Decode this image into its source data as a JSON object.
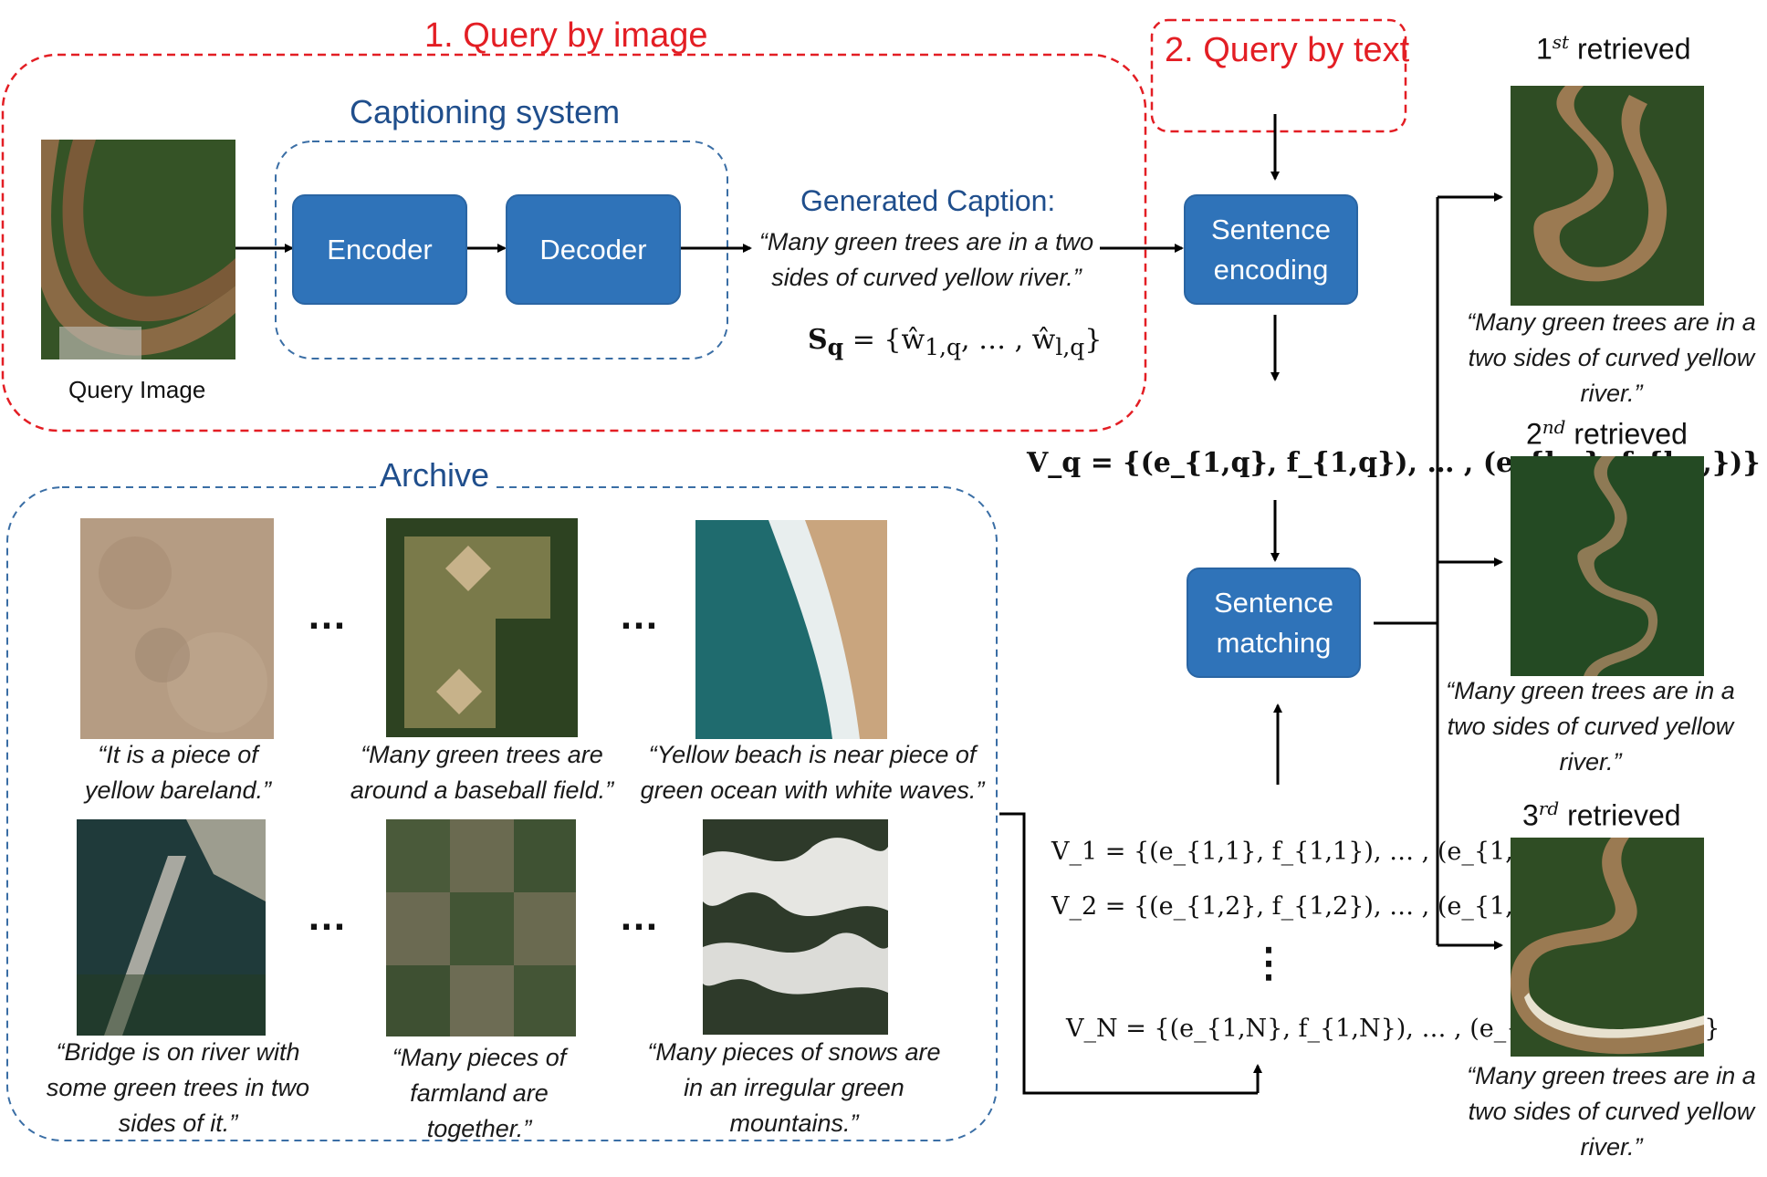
{
  "query_by_image": {
    "title": "1. Query by image"
  },
  "query_by_text": {
    "title": "2. Query by text"
  },
  "captioning_system": {
    "title": "Captioning system",
    "encoder": "Encoder",
    "decoder": "Decoder"
  },
  "query_image_label": "Query Image",
  "generated_caption": {
    "heading": "Generated Caption:",
    "line1": "“Many green trees are in a two",
    "line2": "sides of curved yellow river.”",
    "formula_lhs": "S",
    "formula_sub": "q",
    "formula_rhs": " = {ŵ",
    "formula_sub1": "1,q",
    "formula_mid": ", … , ŵ",
    "formula_sub2": "l,q",
    "formula_end": "}"
  },
  "sentence_encoding": {
    "line1": "Sentence",
    "line2": "encoding"
  },
  "sentence_matching": {
    "line1": "Sentence",
    "line2": "matching"
  },
  "vq_formula": "V_q = {(e_{1,q}, f_{1,q}), … , (e_{l,q}, f_{l,q,})}",
  "archive": {
    "title": "Archive",
    "items": [
      {
        "line1": "“It is a piece of",
        "line2": "yellow bareland.”",
        "line3": ""
      },
      {
        "line1": "“Many green trees are",
        "line2": "around a baseball field.”",
        "line3": ""
      },
      {
        "line1": "“Yellow beach is near piece of",
        "line2": "green ocean with white waves.”",
        "line3": ""
      },
      {
        "line1": "“Bridge is on river with",
        "line2": "some green trees in two",
        "line3": "sides of it.”"
      },
      {
        "line1": "“Many pieces of",
        "line2": "farmland are",
        "line3": "together.”"
      },
      {
        "line1": "“Many pieces of snows are",
        "line2": "in an irregular green",
        "line3": "mountains.”"
      }
    ],
    "ellipsis": "…"
  },
  "archive_vectors": {
    "v1": "V_1 = {(e_{1,1}, f_{1,1}), … , (e_{1,1}, f_{l,1,})}",
    "v2": "V_2 = {(e_{1,2}, f_{1,2}), … , (e_{1,2}, f_{l,2,})}",
    "vdots": "⋮",
    "vn": "V_N = {(e_{1,N}, f_{1,N}), … , (e_{1,N}, f_{l,N,})}"
  },
  "retrieved": [
    {
      "ordinal": "1",
      "suffix": "st",
      "label": "retrieved",
      "line1": "“Many green trees are in a",
      "line2": "two sides of curved yellow",
      "line3": "river.”"
    },
    {
      "ordinal": "2",
      "suffix": "nd",
      "label": "retrieved",
      "line1": "“Many green trees are in a",
      "line2": "two sides of curved yellow",
      "line3": "river.”"
    },
    {
      "ordinal": "3",
      "suffix": "rd",
      "label": "retrieved",
      "line1": "“Many green trees are in a",
      "line2": "two sides of curved yellow",
      "line3": "river.”"
    }
  ],
  "colors": {
    "red": "#e31e24",
    "blue_box": "#2f73b9",
    "blue_text": "#1f4e8c",
    "dashed_blue": "#3a6ea5"
  }
}
